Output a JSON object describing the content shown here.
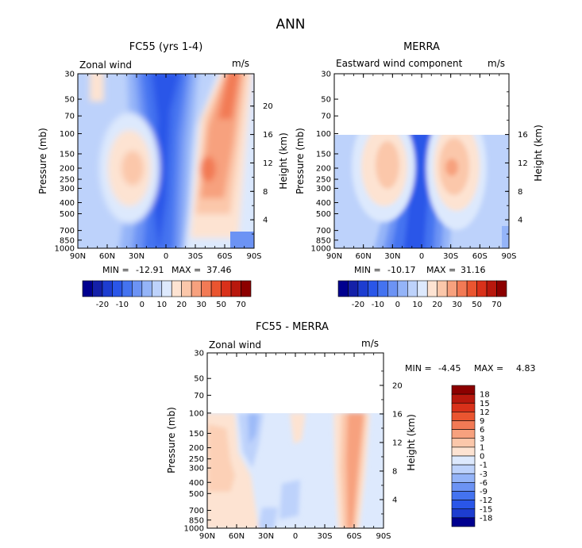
{
  "figure": {
    "title": "ANN",
    "colors": {
      "neg": [
        "#00008f",
        "#1420a8",
        "#1d3dd0",
        "#2a56e8",
        "#4473f0",
        "#6c93f4",
        "#94b4f8",
        "#bdd2fb",
        "#dde9fd"
      ],
      "pos": [
        "#fde3d2",
        "#fbc7aa",
        "#f7a17e",
        "#f27a55",
        "#ea5530",
        "#d9311a",
        "#b8180d",
        "#8c0000"
      ]
    }
  },
  "chart_data": [
    {
      "type": "heatmap",
      "title": "FC55 (yrs 1-4)",
      "variable_label": "Zonal wind",
      "units": "m/s",
      "ylabel": "Pressure (mb)",
      "y2label": "Height (km)",
      "x_ticks": [
        "90N",
        "60N",
        "30N",
        "0",
        "30S",
        "60S",
        "90S"
      ],
      "y_ticks": [
        "30",
        "50",
        "70",
        "100",
        "150",
        "200",
        "250",
        "300",
        "400",
        "500",
        "700",
        "850",
        "1000"
      ],
      "y2_ticks": [
        "20",
        "16",
        "12",
        "8",
        "4"
      ],
      "stats": {
        "min_label": "MIN =",
        "min": "-12.91",
        "max_label": "MAX =",
        "max": "37.46"
      },
      "colorbar_labels": [
        "-20",
        "-10",
        "0",
        "10",
        "20",
        "30",
        "50",
        "70"
      ],
      "data_top_pressure": 30,
      "features": {
        "nh_jet_core_lat": 33,
        "nh_jet_core_p": 200,
        "nh_jet_max": 24,
        "sh_jet_core_lat": -42,
        "sh_jet_core_p": 200,
        "sh_jet_max": 37.46,
        "tropical_min": -12.91
      }
    },
    {
      "type": "heatmap",
      "title": "MERRA",
      "variable_label": "Eastward wind component",
      "units": "m/s",
      "ylabel": "Pressure (mb)",
      "y2label": "Height (km)",
      "x_ticks": [
        "90N",
        "60N",
        "30N",
        "0",
        "30S",
        "60S",
        "90S"
      ],
      "y_ticks": [
        "30",
        "50",
        "70",
        "100",
        "150",
        "200",
        "250",
        "300",
        "400",
        "500",
        "700",
        "850",
        "1000"
      ],
      "y2_ticks": [
        "16",
        "12",
        "8",
        "4"
      ],
      "stats": {
        "min_label": "MIN =",
        "min": "-10.17",
        "max_label": "MAX =",
        "max": "31.16"
      },
      "colorbar_labels": [
        "-20",
        "-10",
        "0",
        "10",
        "20",
        "30",
        "50",
        "70"
      ],
      "data_top_pressure": 100,
      "features": {
        "nh_jet_core_lat": 35,
        "nh_jet_core_p": 200,
        "nh_jet_max": 22,
        "sh_jet_core_lat": -42,
        "sh_jet_core_p": 200,
        "sh_jet_max": 31.16,
        "tropical_min": -10.17
      }
    },
    {
      "type": "heatmap",
      "title": "FC55 - MERRA",
      "variable_label": "Zonal wind",
      "units": "m/s",
      "ylabel": "Pressure (mb)",
      "y2label": "Height (km)",
      "x_ticks": [
        "90N",
        "60N",
        "30N",
        "0",
        "30S",
        "60S",
        "90S"
      ],
      "y_ticks": [
        "30",
        "50",
        "70",
        "100",
        "150",
        "200",
        "250",
        "300",
        "400",
        "500",
        "700",
        "850",
        "1000"
      ],
      "y2_ticks": [
        "20",
        "16",
        "12",
        "8",
        "4"
      ],
      "stats": {
        "min_label": "MIN =",
        "min": "-4.45",
        "max_label": "MAX =",
        "max": "4.83"
      },
      "colorbar_labels": [
        "18",
        "15",
        "12",
        "9",
        "6",
        "3",
        "1",
        "0",
        "-1",
        "-3",
        "-6",
        "-9",
        "-12",
        "-15",
        "-18"
      ],
      "data_top_pressure": 100
    }
  ]
}
